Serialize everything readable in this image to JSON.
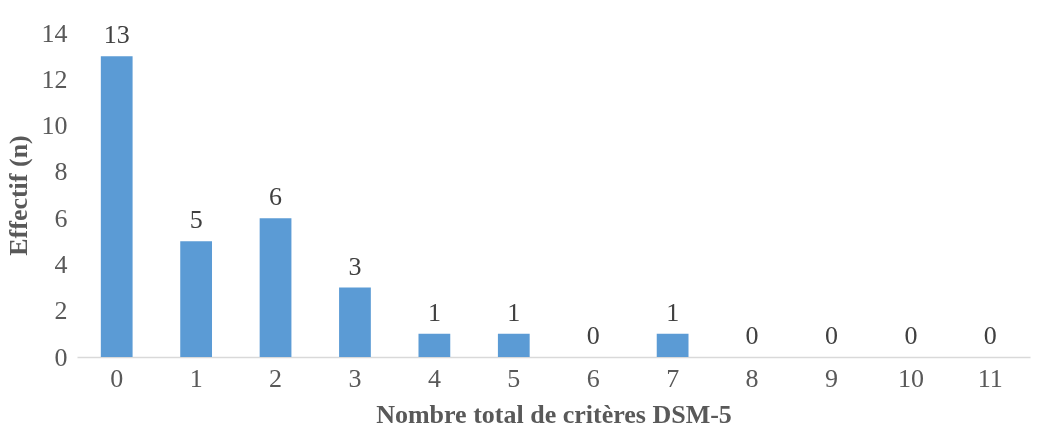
{
  "chart_data": {
    "type": "bar",
    "xlabel": "Nombre total de critères DSM-5",
    "ylabel": "Effectif (n)",
    "categories": [
      "0",
      "1",
      "2",
      "3",
      "4",
      "5",
      "6",
      "7",
      "8",
      "9",
      "10",
      "11"
    ],
    "values": [
      13,
      5,
      6,
      3,
      1,
      1,
      0,
      1,
      0,
      0,
      0,
      0
    ],
    "color": "#5b9bd5",
    "ylim": [
      0,
      14
    ],
    "yticks": [
      0,
      2,
      4,
      6,
      8,
      10,
      12,
      14
    ],
    "grid": false,
    "data_labels": true
  }
}
